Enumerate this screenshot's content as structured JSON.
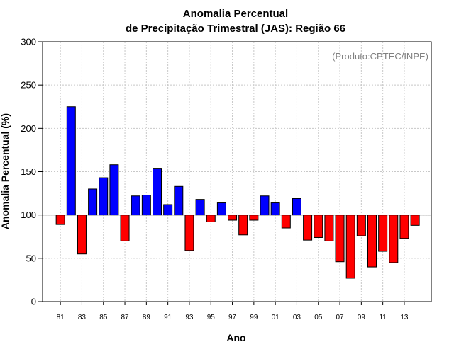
{
  "chart_data": {
    "type": "bar",
    "title": [
      "Anomalia Percentual",
      "de Precipitação Trimestral (JAS): Região 66"
    ],
    "xlabel": "Ano",
    "ylabel": "Anomalia Percentual (%)",
    "source_note": "(Produto:CPTEC/INPE)",
    "ylim": [
      0,
      300
    ],
    "yticks": [
      "0",
      "50",
      "100",
      "150",
      "200",
      "250",
      "300"
    ],
    "baseline": 100,
    "categories": [
      "81",
      "82",
      "83",
      "84",
      "85",
      "86",
      "87",
      "88",
      "89",
      "90",
      "91",
      "92",
      "93",
      "94",
      "95",
      "96",
      "97",
      "98",
      "99",
      "00",
      "01",
      "02",
      "03",
      "04",
      "05",
      "06",
      "07",
      "08",
      "09",
      "10",
      "11",
      "12",
      "13",
      "14"
    ],
    "xtick_labels": [
      "81",
      "83",
      "85",
      "87",
      "89",
      "91",
      "93",
      "95",
      "97",
      "99",
      "01",
      "03",
      "05",
      "07",
      "09",
      "11",
      "13"
    ],
    "values": [
      89,
      225,
      55,
      130,
      143,
      158,
      70,
      122,
      123,
      154,
      112,
      133,
      59,
      118,
      92,
      114,
      94,
      77,
      94,
      122,
      114,
      85,
      119,
      71,
      74,
      70,
      46,
      27,
      76,
      40,
      58,
      45,
      73,
      88
    ],
    "colors": {
      "above": "#0000ff",
      "below": "#ff0000",
      "axis": "#000000",
      "grid": "#c8c8c8"
    }
  }
}
